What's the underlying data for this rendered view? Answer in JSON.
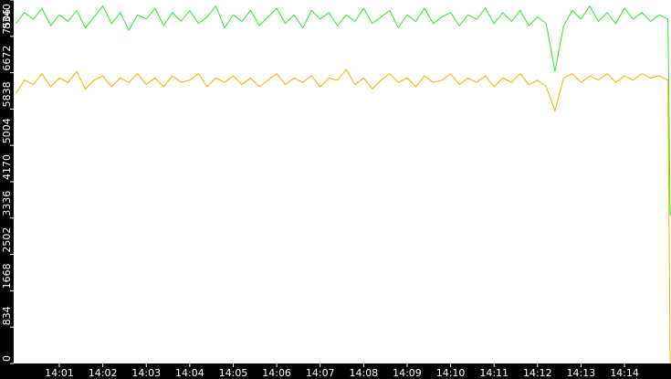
{
  "chart_data": {
    "type": "line",
    "x": [
      0,
      0.2,
      0.4,
      0.6,
      0.8,
      1,
      1.2,
      1.4,
      1.6,
      1.8,
      2,
      2.2,
      2.4,
      2.6,
      2.8,
      3,
      3.2,
      3.4,
      3.6,
      3.8,
      4,
      4.2,
      4.4,
      4.6,
      4.8,
      5,
      5.2,
      5.4,
      5.6,
      5.8,
      6,
      6.2,
      6.4,
      6.6,
      6.8,
      7,
      7.2,
      7.4,
      7.6,
      7.8,
      8,
      8.2,
      8.4,
      8.6,
      8.8,
      9,
      9.2,
      9.4,
      9.6,
      9.8,
      10,
      10.2,
      10.4,
      10.6,
      10.8,
      11,
      11.2,
      11.4,
      11.6,
      11.8,
      12,
      12.2,
      12.4,
      12.6,
      12.8,
      13,
      13.2,
      13.4,
      13.6,
      13.8,
      14,
      14.2,
      14.4,
      14.6,
      14.8,
      15,
      15.05
    ],
    "series": [
      {
        "color": "#2ee62e",
        "values": [
          7800,
          8050,
          7900,
          8150,
          7750,
          8000,
          7850,
          8100,
          7700,
          7950,
          8200,
          7800,
          8050,
          7650,
          8000,
          7900,
          8150,
          7750,
          8050,
          7850,
          8100,
          7800,
          7950,
          8200,
          7700,
          8000,
          7850,
          8100,
          7750,
          7950,
          8150,
          7800,
          8000,
          7700,
          8100,
          7900,
          8050,
          7750,
          8000,
          7850,
          8150,
          7800,
          7950,
          8100,
          7700,
          8000,
          7850,
          8150,
          7800,
          7950,
          8050,
          7750,
          8000,
          7900,
          8150,
          7800,
          8050,
          7850,
          8100,
          7750,
          7950,
          7800,
          6700,
          7750,
          8100,
          7900,
          8200,
          7850,
          8050,
          7800,
          8150,
          7900,
          8050,
          7850,
          8000,
          7900,
          3400
        ]
      },
      {
        "color": "#f0b400",
        "values": [
          6200,
          6500,
          6400,
          6650,
          6350,
          6550,
          6450,
          6700,
          6300,
          6500,
          6600,
          6350,
          6550,
          6450,
          6650,
          6400,
          6550,
          6350,
          6600,
          6450,
          6500,
          6650,
          6350,
          6550,
          6450,
          6600,
          6400,
          6550,
          6350,
          6500,
          6650,
          6400,
          6550,
          6450,
          6600,
          6350,
          6550,
          6500,
          6750,
          6400,
          6550,
          6300,
          6500,
          6650,
          6450,
          6550,
          6350,
          6600,
          6450,
          6500,
          6650,
          6400,
          6550,
          6450,
          6600,
          6350,
          6550,
          6450,
          6650,
          6400,
          6500,
          6350,
          5800,
          6550,
          6650,
          6450,
          6600,
          6500,
          6650,
          6450,
          6600,
          6500,
          6650,
          6550,
          6600,
          6500,
          0
        ]
      }
    ],
    "xlim": [
      -0.05,
      15.07
    ],
    "ylim": [
      0,
      8340
    ],
    "yticks": [
      0,
      834,
      1668,
      2502,
      3336,
      4170,
      5004,
      5838,
      6672,
      7506,
      8340
    ],
    "xticks": [
      {
        "value": 1,
        "label": "14:01"
      },
      {
        "value": 2,
        "label": "14:02"
      },
      {
        "value": 3,
        "label": "14:03"
      },
      {
        "value": 4,
        "label": "14:04"
      },
      {
        "value": 5,
        "label": "14:05"
      },
      {
        "value": 6,
        "label": "14:06"
      },
      {
        "value": 7,
        "label": "14:07"
      },
      {
        "value": 8,
        "label": "14:08"
      },
      {
        "value": 9,
        "label": "14:09"
      },
      {
        "value": 10,
        "label": "14:10"
      },
      {
        "value": 11,
        "label": "14:11"
      },
      {
        "value": 12,
        "label": "14:12"
      },
      {
        "value": 13,
        "label": "14:13"
      },
      {
        "value": 14,
        "label": "14:14"
      }
    ]
  }
}
